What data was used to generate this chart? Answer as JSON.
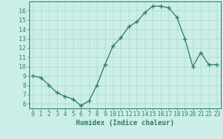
{
  "x": [
    0,
    1,
    2,
    3,
    4,
    5,
    6,
    7,
    8,
    9,
    10,
    11,
    12,
    13,
    14,
    15,
    16,
    17,
    18,
    19,
    20,
    21,
    22,
    23
  ],
  "y": [
    9.0,
    8.8,
    8.0,
    7.2,
    6.8,
    6.5,
    5.8,
    6.3,
    8.0,
    10.2,
    12.2,
    13.1,
    14.3,
    14.8,
    15.8,
    16.5,
    16.5,
    16.3,
    15.3,
    13.0,
    10.0,
    11.5,
    10.2,
    10.2
  ],
  "line_color": "#2e7d6e",
  "marker": "+",
  "marker_size": 4,
  "bg_color": "#cceee8",
  "grid_color": "#aad4cc",
  "xlabel": "Humidex (Indice chaleur)",
  "xlim": [
    -0.5,
    23.5
  ],
  "ylim": [
    5.5,
    17.0
  ],
  "yticks": [
    6,
    7,
    8,
    9,
    10,
    11,
    12,
    13,
    14,
    15,
    16
  ],
  "xticks": [
    0,
    1,
    2,
    3,
    4,
    5,
    6,
    7,
    8,
    9,
    10,
    11,
    12,
    13,
    14,
    15,
    16,
    17,
    18,
    19,
    20,
    21,
    22,
    23
  ],
  "xlabel_fontsize": 7,
  "tick_fontsize": 6,
  "axis_color": "#2e7d6e",
  "line_width": 1.0
}
